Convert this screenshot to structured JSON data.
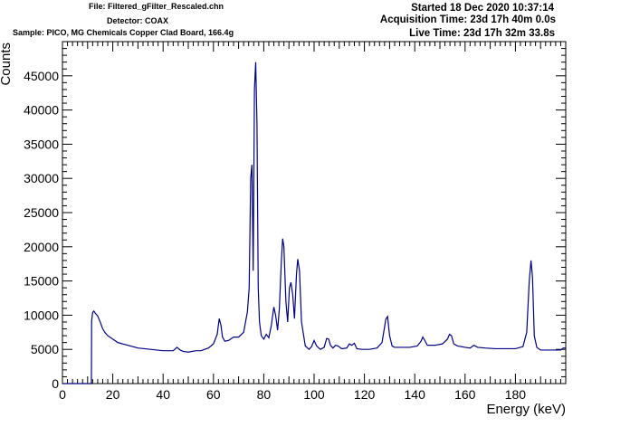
{
  "header": {
    "file": "File: Filtered_gFilter_Rescaled.chn",
    "detector": "Detector: COAX",
    "sample": "Sample: PICO, MG Chemicals Copper Clad Board, 166.4g",
    "started": "Started 18 Dec 2020 10:37:14",
    "acquisition": "Acquisition Time: 23d 17h 40m 0.0s",
    "live": "Live Time: 23d 17h 32m 33.8s"
  },
  "colors": {
    "line": "#000080",
    "axis": "#000000",
    "background": "#ffffff"
  },
  "chart_data": {
    "type": "line",
    "title": "",
    "xlabel": "Energy (keV)",
    "ylabel": "Counts",
    "xlim": [
      0,
      200
    ],
    "ylim": [
      0,
      50000
    ],
    "grid": false,
    "xticks": [
      0,
      20,
      40,
      60,
      80,
      100,
      120,
      140,
      160,
      180
    ],
    "yticks": [
      0,
      5000,
      10000,
      15000,
      20000,
      25000,
      30000,
      35000,
      40000,
      45000
    ],
    "xtick_labels": [
      "0",
      "20",
      "40",
      "60",
      "80",
      "100",
      "120",
      "140",
      "160",
      "180"
    ],
    "ytick_labels": [
      "0",
      "5000",
      "10000",
      "15000",
      "20000",
      "25000",
      "30000",
      "35000",
      "40000",
      "45000"
    ],
    "series": [
      {
        "x": [
          0,
          11.5,
          11.6,
          12.0,
          12.5,
          13.0,
          14.0,
          15.0,
          16.0,
          17.0,
          18.0,
          20.0,
          22.0,
          25.0,
          30.0,
          35.0,
          40.0,
          44.0,
          45.5,
          46.8,
          48.0,
          50.0,
          53.0,
          55.0,
          58.0,
          60.0,
          61.5,
          62.3,
          63.0,
          63.6,
          64.5,
          66.0,
          68.0,
          70.0,
          72.0,
          73.5,
          74.2,
          74.8,
          75.3,
          75.8,
          76.3,
          76.8,
          77.3,
          77.8,
          78.3,
          79.0,
          80.0,
          81.0,
          82.0,
          83.0,
          84.0,
          84.7,
          85.5,
          86.2,
          87.0,
          87.5,
          88.0,
          88.8,
          89.5,
          90.2,
          90.8,
          91.5,
          92.2,
          93.0,
          93.5,
          94.2,
          95.0,
          96.5,
          98.0,
          99.0,
          100.0,
          101.0,
          102.5,
          104.0,
          105.0,
          105.8,
          106.5,
          107.5,
          108.5,
          109.5,
          111.0,
          113.0,
          114.0,
          115.0,
          116.0,
          117.0,
          119.0,
          122.0,
          125.0,
          127.0,
          128.5,
          129.2,
          130.0,
          131.0,
          132.0,
          135.0,
          138.0,
          141.0,
          142.5,
          143.2,
          144.0,
          145.0,
          148.0,
          151.0,
          153.0,
          153.8,
          154.6,
          155.5,
          157.0,
          160.0,
          162.0,
          163.5,
          165.0,
          168.0,
          172.0,
          176.0,
          180.0,
          183.0,
          184.5,
          185.5,
          186.2,
          186.8,
          187.5,
          188.5,
          190.0,
          194.0,
          198.0,
          199.0,
          200.0
        ],
        "y": [
          0,
          0,
          9200,
          10400,
          10600,
          10300,
          9900,
          9000,
          8000,
          7400,
          7000,
          6500,
          6000,
          5700,
          5200,
          5000,
          4800,
          4800,
          5300,
          4900,
          4700,
          4600,
          4800,
          4800,
          5200,
          5800,
          7200,
          9500,
          8500,
          6800,
          6200,
          6300,
          6800,
          6800,
          7500,
          10500,
          14000,
          30000,
          32000,
          16500,
          43000,
          47000,
          38000,
          14000,
          9000,
          7000,
          6500,
          7200,
          6700,
          8500,
          11200,
          10000,
          7800,
          11000,
          18000,
          21200,
          20000,
          12000,
          9000,
          14000,
          14800,
          13000,
          9500,
          16000,
          18200,
          16500,
          9000,
          5500,
          5000,
          5400,
          6300,
          5500,
          5000,
          5300,
          6600,
          6500,
          5600,
          5200,
          5600,
          5500,
          5100,
          5200,
          5800,
          5600,
          5900,
          5100,
          5000,
          5000,
          5200,
          6000,
          9400,
          9800,
          7000,
          5500,
          5300,
          5300,
          5300,
          5500,
          6200,
          6800,
          6300,
          5600,
          5600,
          5800,
          6500,
          7200,
          7000,
          5800,
          5500,
          5300,
          5200,
          5600,
          5300,
          5200,
          5100,
          5100,
          5100,
          5400,
          7500,
          15000,
          18000,
          15500,
          7000,
          5300,
          4900,
          4900,
          4900,
          5200,
          5200
        ]
      }
    ]
  }
}
